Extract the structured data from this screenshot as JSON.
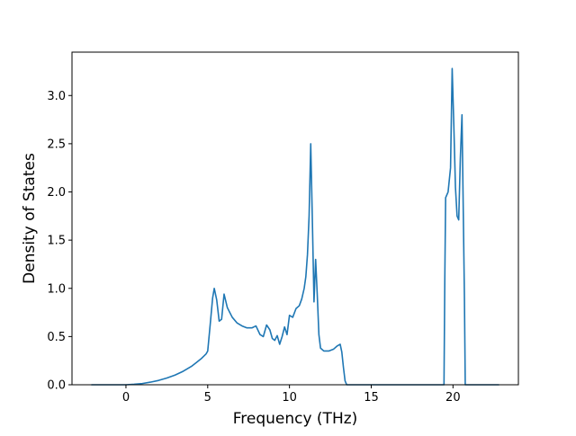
{
  "chart_data": {
    "type": "line",
    "title": "",
    "xlabel": "Frequency (THz)",
    "ylabel": "Density of States",
    "xlim": [
      -3.3,
      24.0
    ],
    "ylim": [
      0.0,
      3.45
    ],
    "xticks": [
      0,
      5,
      10,
      15,
      20
    ],
    "xtick_labels": [
      "0",
      "5",
      "10",
      "15",
      "20"
    ],
    "yticks": [
      0.0,
      0.5,
      1.0,
      1.5,
      2.0,
      2.5,
      3.0
    ],
    "ytick_labels": [
      "0.0",
      "0.5",
      "1.0",
      "1.5",
      "2.0",
      "2.5",
      "3.0"
    ],
    "grid": false,
    "legend": "none",
    "series": [
      {
        "color": "#1f77b4",
        "x": [
          -2.1,
          -1.5,
          -1.0,
          -0.5,
          0.0,
          0.5,
          1.0,
          1.5,
          2.0,
          2.5,
          3.0,
          3.5,
          4.0,
          4.3,
          4.6,
          4.9,
          5.0,
          5.15,
          5.3,
          5.4,
          5.55,
          5.7,
          5.85,
          6.0,
          6.2,
          6.5,
          6.8,
          7.1,
          7.4,
          7.7,
          7.95,
          8.2,
          8.4,
          8.6,
          8.8,
          8.95,
          9.1,
          9.25,
          9.4,
          9.55,
          9.7,
          9.85,
          10.0,
          10.2,
          10.4,
          10.6,
          10.75,
          10.9,
          11.0,
          11.1,
          11.2,
          11.3,
          11.4,
          11.5,
          11.6,
          11.7,
          11.8,
          11.9,
          12.1,
          12.4,
          12.7,
          12.9,
          13.1,
          13.2,
          13.3,
          13.4,
          13.5,
          14.0,
          15.0,
          16.0,
          17.0,
          18.0,
          19.0,
          19.45,
          19.5,
          19.55,
          19.7,
          19.85,
          19.95,
          20.05,
          20.15,
          20.25,
          20.35,
          20.45,
          20.55,
          20.7,
          20.75,
          20.8,
          21.5,
          22.8
        ],
        "y": [
          0.0,
          0.0,
          0.0,
          0.0,
          0.0,
          0.005,
          0.013,
          0.027,
          0.045,
          0.07,
          0.1,
          0.14,
          0.19,
          0.23,
          0.27,
          0.32,
          0.35,
          0.62,
          0.9,
          1.0,
          0.88,
          0.66,
          0.68,
          0.94,
          0.8,
          0.7,
          0.64,
          0.61,
          0.59,
          0.59,
          0.61,
          0.52,
          0.5,
          0.62,
          0.57,
          0.48,
          0.46,
          0.51,
          0.42,
          0.5,
          0.6,
          0.52,
          0.72,
          0.7,
          0.79,
          0.82,
          0.89,
          1.0,
          1.12,
          1.35,
          1.75,
          2.5,
          1.7,
          0.86,
          1.3,
          0.93,
          0.52,
          0.38,
          0.35,
          0.35,
          0.37,
          0.4,
          0.42,
          0.34,
          0.18,
          0.04,
          0.0,
          0.0,
          0.0,
          0.0,
          0.0,
          0.0,
          0.0,
          0.0,
          1.1,
          1.94,
          2.0,
          2.25,
          3.28,
          2.7,
          2.05,
          1.75,
          1.71,
          2.35,
          2.8,
          0.9,
          0.0,
          0.0,
          0.0,
          0.0
        ]
      }
    ]
  }
}
